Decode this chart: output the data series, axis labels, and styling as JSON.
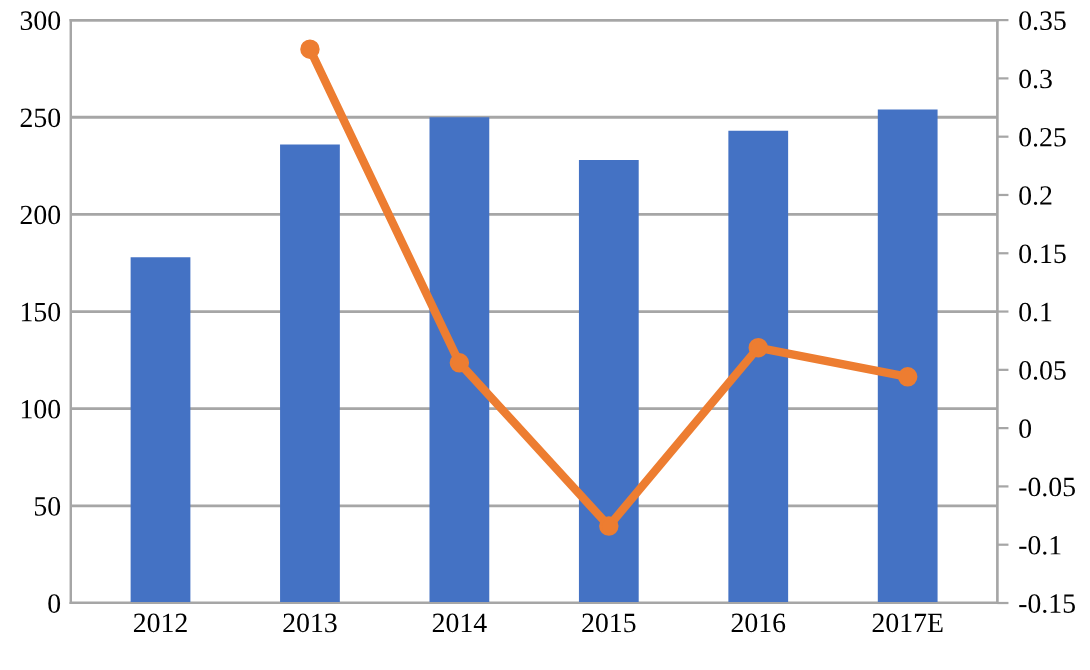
{
  "chart_data": {
    "type": "bar",
    "categories": [
      "2012",
      "2013",
      "2014",
      "2015",
      "2016",
      "2017E"
    ],
    "series": [
      {
        "color": "#4472c4",
        "values": [
          178,
          236,
          250,
          228,
          243,
          254
        ]
      },
      {
        "type": "line",
        "axis": "y2",
        "color": "#ed7d31",
        "marker": "circle",
        "values": [
          null,
          0.325,
          0.056,
          -0.084,
          0.069,
          0.044
        ]
      }
    ],
    "ylim": [
      0,
      300
    ],
    "yticks": [
      0,
      50,
      100,
      150,
      200,
      250,
      300
    ],
    "y2lim": [
      -0.15,
      0.35
    ],
    "y2ticks": [
      -0.15,
      -0.1,
      -0.05,
      0,
      0.05,
      0.1,
      0.15,
      0.2,
      0.25,
      0.3,
      0.35
    ],
    "grid": "y"
  }
}
